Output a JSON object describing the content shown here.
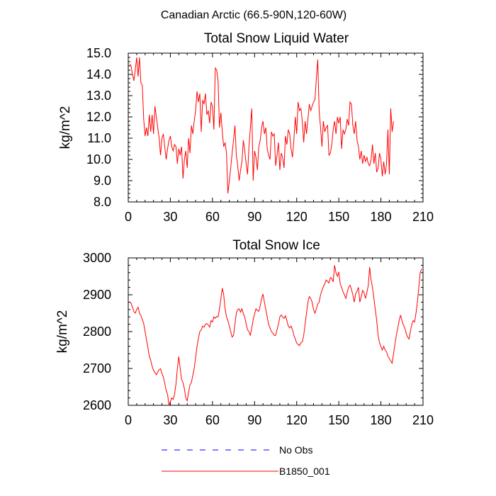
{
  "figure_title": "Canadian Arctic (66.5-90N,120-60W)",
  "colors": {
    "model": "#ff0000",
    "obs": "#0000ff",
    "axis": "#000000"
  },
  "legend": [
    {
      "label": "No Obs",
      "style": "dashed",
      "color": "#0000ff"
    },
    {
      "label": "B1850_001",
      "style": "solid",
      "color": "#ff0000"
    }
  ],
  "chart_data": [
    {
      "type": "line",
      "title": "Total Snow Liquid Water",
      "xlabel": "",
      "ylabel": "kg/m^2",
      "xlim": [
        0,
        210
      ],
      "ylim": [
        8,
        15
      ],
      "x_ticks": [
        0,
        30,
        60,
        90,
        120,
        150,
        180,
        210
      ],
      "y_ticks": [
        8.0,
        9.0,
        10.0,
        11.0,
        12.0,
        13.0,
        14.0,
        15.0
      ],
      "grid": false,
      "series": [
        {
          "name": "B1850_001",
          "x_start": 1,
          "x_step": 1,
          "values": [
            14.5,
            14.4,
            14.0,
            13.7,
            14.2,
            14.8,
            13.9,
            14.8,
            13.6,
            13.5,
            11.9,
            11.1,
            11.5,
            11.1,
            12.1,
            11.3,
            12.1,
            11.2,
            12.5,
            12.0,
            11.5,
            11.0,
            10.2,
            11.0,
            11.2,
            10.6,
            10.0,
            10.5,
            10.9,
            11.1,
            10.6,
            10.4,
            10.7,
            10.6,
            9.8,
            10.5,
            10.2,
            10.6,
            9.1,
            10.0,
            10.4,
            9.6,
            11.0,
            10.3,
            11.6,
            11.2,
            11.8,
            12.3,
            13.2,
            12.7,
            13.1,
            11.3,
            12.8,
            12.6,
            13.1,
            12.1,
            12.3,
            11.7,
            12.7,
            12.5,
            11.4,
            14.3,
            14.2,
            13.7,
            11.5,
            12.2,
            11.3,
            10.6,
            10.8,
            10.3,
            8.4,
            9.0,
            9.6,
            10.3,
            10.9,
            11.6,
            10.2,
            9.7,
            9.0,
            9.5,
            9.9,
            10.9,
            10.4,
            9.8,
            9.3,
            10.6,
            11.5,
            12.4,
            9.0,
            10.4,
            10.1,
            9.5,
            10.6,
            10.9,
            11.5,
            11.8,
            11.2,
            11.5,
            10.5,
            10.2,
            10.0,
            11.3,
            11.1,
            11.2,
            9.7,
            10.2,
            10.8,
            9.5,
            10.3,
            10.1,
            9.6,
            11.1,
            10.7,
            11.4,
            11.2,
            10.5,
            10.1,
            10.9,
            12.0,
            11.2,
            12.7,
            12.3,
            12.4,
            11.8,
            10.8,
            11.8,
            11.2,
            11.9,
            12.6,
            12.3,
            12.5,
            12.7,
            12.8,
            13.8,
            14.7,
            12.3,
            11.5,
            10.6,
            11.8,
            11.3,
            11.5,
            11.6,
            10.2,
            10.3,
            10.7,
            11.4,
            11.8,
            11.2,
            12.0,
            11.7,
            12.0,
            10.5,
            11.4,
            11.2,
            11.4,
            11.9,
            11.6,
            12.7,
            12.6,
            11.6,
            11.2,
            11.8,
            10.9,
            10.6,
            10.0,
            10.4,
            9.8,
            10.2,
            9.9,
            10.1,
            9.8,
            9.7,
            10.0,
            10.7,
            9.8,
            10.3,
            9.4,
            9.6,
            10.3,
            10.0,
            9.2,
            9.9,
            9.3,
            9.8,
            11.4,
            9.3,
            12.4,
            11.3,
            11.8
          ]
        }
      ]
    },
    {
      "type": "line",
      "title": "Total Snow Ice",
      "xlabel": "",
      "ylabel": "kg/m^2",
      "xlim": [
        0,
        210
      ],
      "ylim": [
        2600,
        3000
      ],
      "x_ticks": [
        0,
        30,
        60,
        90,
        120,
        150,
        180,
        210
      ],
      "y_ticks": [
        2600,
        2700,
        2800,
        2900,
        3000
      ],
      "grid": false,
      "series": [
        {
          "name": "B1850_001",
          "x_start": 1,
          "x_step": 1,
          "values": [
            2880,
            2877,
            2866,
            2855,
            2850,
            2860,
            2866,
            2850,
            2844,
            2833,
            2822,
            2800,
            2778,
            2757,
            2733,
            2722,
            2706,
            2695,
            2689,
            2683,
            2690,
            2697,
            2699,
            2686,
            2677,
            2660,
            2640,
            2630,
            2600,
            2610,
            2620,
            2616,
            2630,
            2658,
            2700,
            2732,
            2700,
            2670,
            2662,
            2645,
            2620,
            2612,
            2636,
            2656,
            2662,
            2682,
            2700,
            2730,
            2760,
            2782,
            2800,
            2805,
            2815,
            2812,
            2820,
            2822,
            2818,
            2812,
            2830,
            2826,
            2840,
            2836,
            2841,
            2840,
            2862,
            2890,
            2918,
            2900,
            2862,
            2840,
            2830,
            2815,
            2800,
            2785,
            2790,
            2820,
            2850,
            2860,
            2862,
            2853,
            2862,
            2848,
            2840,
            2820,
            2805,
            2800,
            2790,
            2810,
            2832,
            2848,
            2862,
            2857,
            2855,
            2870,
            2890,
            2902,
            2880,
            2860,
            2840,
            2820,
            2810,
            2800,
            2796,
            2790,
            2790,
            2805,
            2820,
            2840,
            2845,
            2840,
            2836,
            2843,
            2830,
            2815,
            2810,
            2815,
            2805,
            2790,
            2780,
            2769,
            2765,
            2762,
            2770,
            2772,
            2790,
            2820,
            2850,
            2880,
            2895,
            2890,
            2880,
            2860,
            2850,
            2862,
            2875,
            2880,
            2900,
            2912,
            2922,
            2930,
            2940,
            2936,
            2932,
            2947,
            2944,
            2935,
            2980,
            2960,
            2950,
            2962,
            2930,
            2920,
            2908,
            2900,
            2890,
            2907,
            2920,
            2926,
            2915,
            2900,
            2880,
            2902,
            2910,
            2920,
            2880,
            2895,
            2912,
            2905,
            2890,
            2906,
            2925,
            2975,
            2940,
            2920,
            2890,
            2860,
            2830,
            2790,
            2770,
            2760,
            2750,
            2760,
            2750,
            2745,
            2733,
            2727,
            2720,
            2714,
            2740,
            2766,
            2790,
            2810,
            2830,
            2845,
            2830,
            2818,
            2810,
            2795,
            2785,
            2780,
            2800,
            2820,
            2830,
            2826,
            2850,
            2880,
            2920,
            2960,
            2970
          ]
        }
      ]
    }
  ]
}
